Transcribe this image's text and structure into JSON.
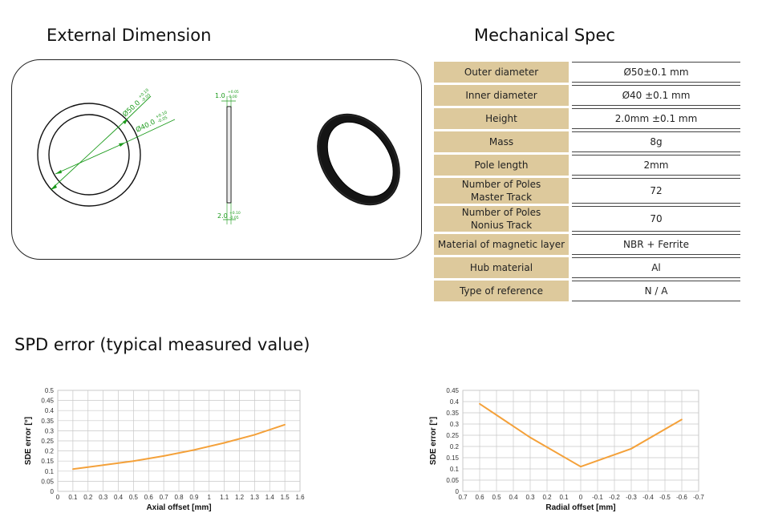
{
  "headings": {
    "external_dimension": "External Dimension",
    "mechanical_spec": "Mechanical Spec",
    "spd_error": "SPD error (typical measured value)"
  },
  "dimension_drawing": {
    "outer_label": "Ø50.0",
    "outer_tol_plus": "+0.10",
    "outer_tol_minus": "-0.05",
    "inner_label": "Ø40.0",
    "inner_tol_plus": "+0.10",
    "inner_tol_minus": "-0.05",
    "thickness_top": "1.0",
    "thickness_top_tol_plus": "+0.05",
    "thickness_top_tol_minus": "-0.00",
    "height_bottom": "2.0",
    "height_bottom_tol_plus": "+0.10",
    "height_bottom_tol_minus": "-0.05",
    "dim_color": "#1a9a1a",
    "ring_color": "#111111"
  },
  "spec": [
    {
      "label": "Outer diameter",
      "value": "Ø50±0.1 mm"
    },
    {
      "label": "Inner diameter",
      "value": "Ø40 ±0.1 mm"
    },
    {
      "label": "Height",
      "value": "2.0mm ±0.1 mm"
    },
    {
      "label": "Mass",
      "value": "8g"
    },
    {
      "label": "Pole length",
      "value": "2mm"
    },
    {
      "label_line1": "Number of Poles",
      "label_line2": "Master Track",
      "value": "72"
    },
    {
      "label_line1": "Number of Poles",
      "label_line2": "Nonius Track",
      "value": "70"
    },
    {
      "label": "Material of magnetic layer",
      "value": "NBR + Ferrite"
    },
    {
      "label": "Hub material",
      "value": "Al"
    },
    {
      "label": "Type of reference",
      "value": "N / A"
    }
  ],
  "spec_colors": {
    "label_bg": "#ddc99c"
  },
  "chart_data": [
    {
      "type": "line",
      "xlabel": "Axial offset [mm]",
      "ylabel": "SDE error [°]",
      "xlim": [
        0,
        1.6
      ],
      "ylim": [
        0,
        0.5
      ],
      "xticks": [
        "0",
        "0.1",
        "0.2",
        "0.3",
        "0.4",
        "0.5",
        "0.6",
        "0.7",
        "0.8",
        "0.9",
        "1",
        "1.1",
        "1.2",
        "1.3",
        "1.4",
        "1.5",
        "1.6"
      ],
      "yticks": [
        "0",
        "0.05",
        "0.1",
        "0.15",
        "0.2",
        "0.25",
        "0.3",
        "0.35",
        "0.4",
        "0.45",
        "0.5"
      ],
      "grid": true,
      "color": "#f4a13a",
      "x": [
        0.1,
        0.3,
        0.5,
        0.7,
        0.9,
        1.1,
        1.3,
        1.5
      ],
      "y": [
        0.11,
        0.13,
        0.15,
        0.175,
        0.205,
        0.24,
        0.28,
        0.33
      ]
    },
    {
      "type": "line",
      "xlabel": "Radial offset [mm]",
      "ylabel": "SDE error [°]",
      "xlim": [
        0.7,
        -0.7
      ],
      "ylim": [
        0,
        0.45
      ],
      "xticks": [
        "0.7",
        "0.6",
        "0.5",
        "0.4",
        "0.3",
        "0.2",
        "0.1",
        "0",
        "-0.1",
        "-0.2",
        "-0.3",
        "-0.4",
        "-0.5",
        "-0.6",
        "-0.7"
      ],
      "yticks": [
        "0",
        "0.05",
        "0.1",
        "0.15",
        "0.2",
        "0.25",
        "0.3",
        "0.35",
        "0.4",
        "0.45"
      ],
      "grid": true,
      "color": "#f4a13a",
      "x": [
        0.6,
        0.3,
        0.0,
        -0.3,
        -0.6
      ],
      "y": [
        0.39,
        0.24,
        0.11,
        0.19,
        0.32
      ]
    }
  ]
}
